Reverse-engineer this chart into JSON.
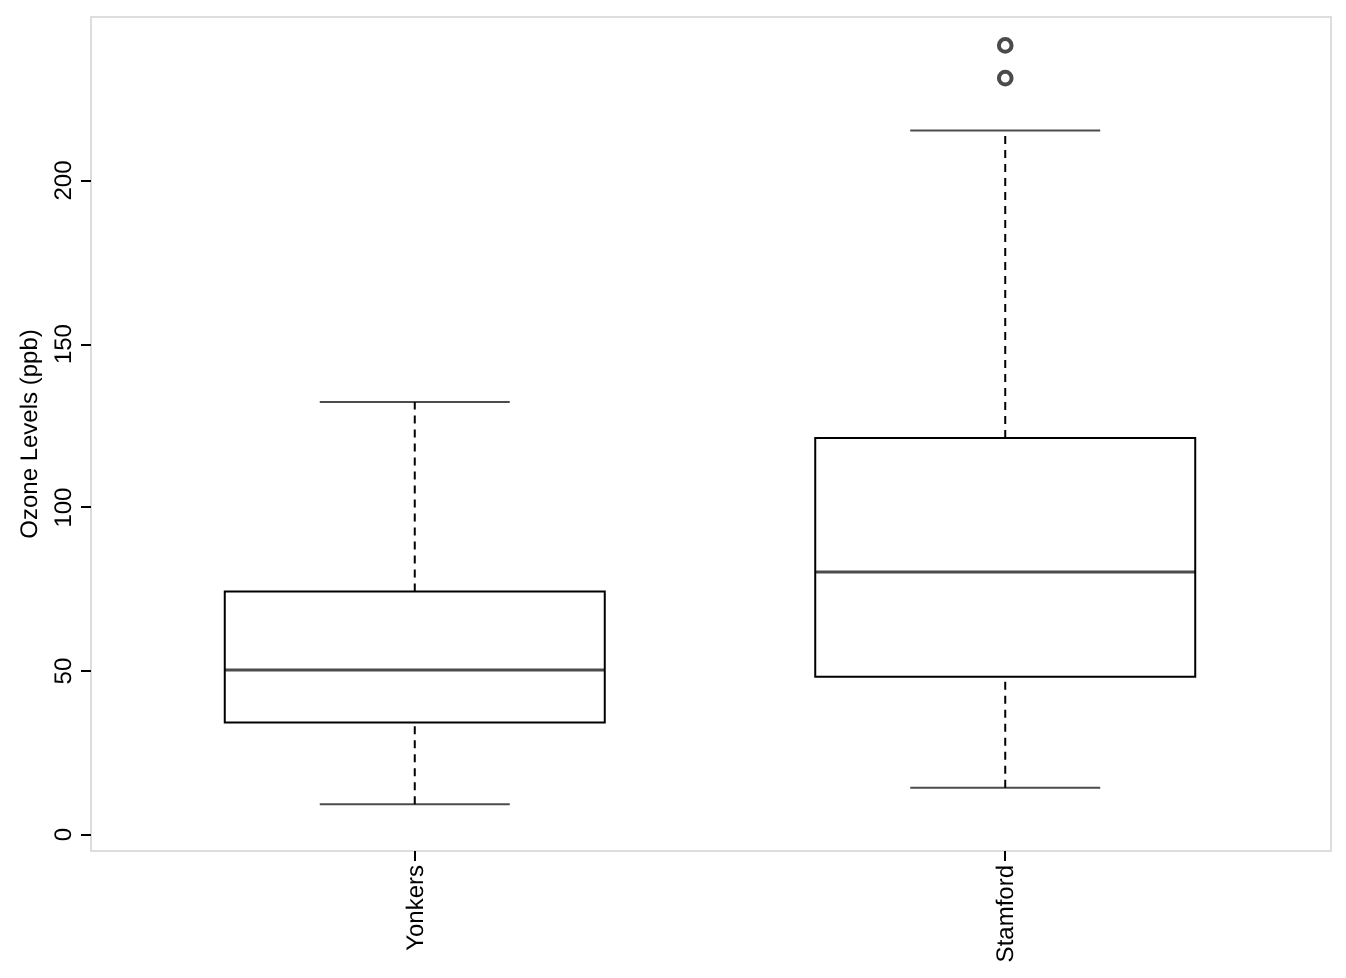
{
  "chart_data": {
    "type": "box",
    "ylabel": "Ozone Levels (ppb)",
    "categories": [
      "Yonkers",
      "Stamford"
    ],
    "boxes": [
      {
        "low": 9,
        "q1": 34,
        "median": 50,
        "q3": 74,
        "high": 132
      },
      {
        "low": 14,
        "q1": 48,
        "median": 80,
        "q3": 121,
        "high": 215,
        "outliers": [
          231,
          241
        ]
      }
    ],
    "ylim": [
      -5,
      250
    ],
    "yticks": [
      0,
      50,
      100,
      150,
      200
    ],
    "grid": false
  }
}
